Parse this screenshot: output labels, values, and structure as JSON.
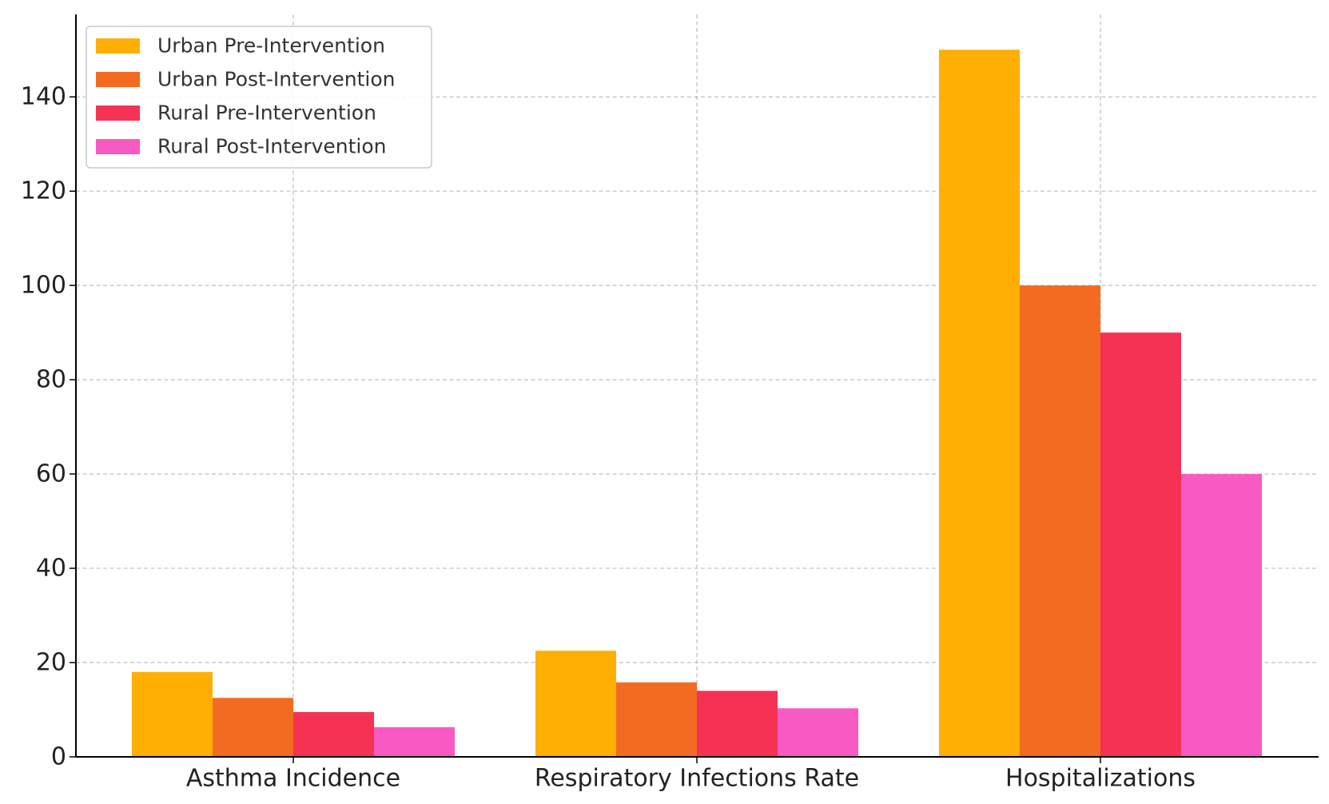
{
  "chart_data": {
    "type": "bar",
    "title": "",
    "xlabel": "",
    "ylabel": "",
    "categories": [
      "Asthma Incidence",
      "Respiratory Infections Rate",
      "Hospitalizations"
    ],
    "series": [
      {
        "name": "Urban Pre-Intervention",
        "color": "#FFAE03",
        "values": [
          18,
          22.5,
          150
        ]
      },
      {
        "name": "Urban Post-Intervention",
        "color": "#F26B21",
        "values": [
          12.5,
          15.8,
          100
        ]
      },
      {
        "name": "Rural Pre-Intervention",
        "color": "#F53154",
        "values": [
          9.5,
          14,
          90
        ]
      },
      {
        "name": "Rural Post-Intervention",
        "color": "#F75AC2",
        "values": [
          6.3,
          10.3,
          60
        ]
      }
    ],
    "ylim": [
      0,
      157.5
    ],
    "yticks": [
      0,
      20,
      40,
      60,
      80,
      100,
      120,
      140
    ],
    "grid": true,
    "legend_position": "top-left"
  }
}
